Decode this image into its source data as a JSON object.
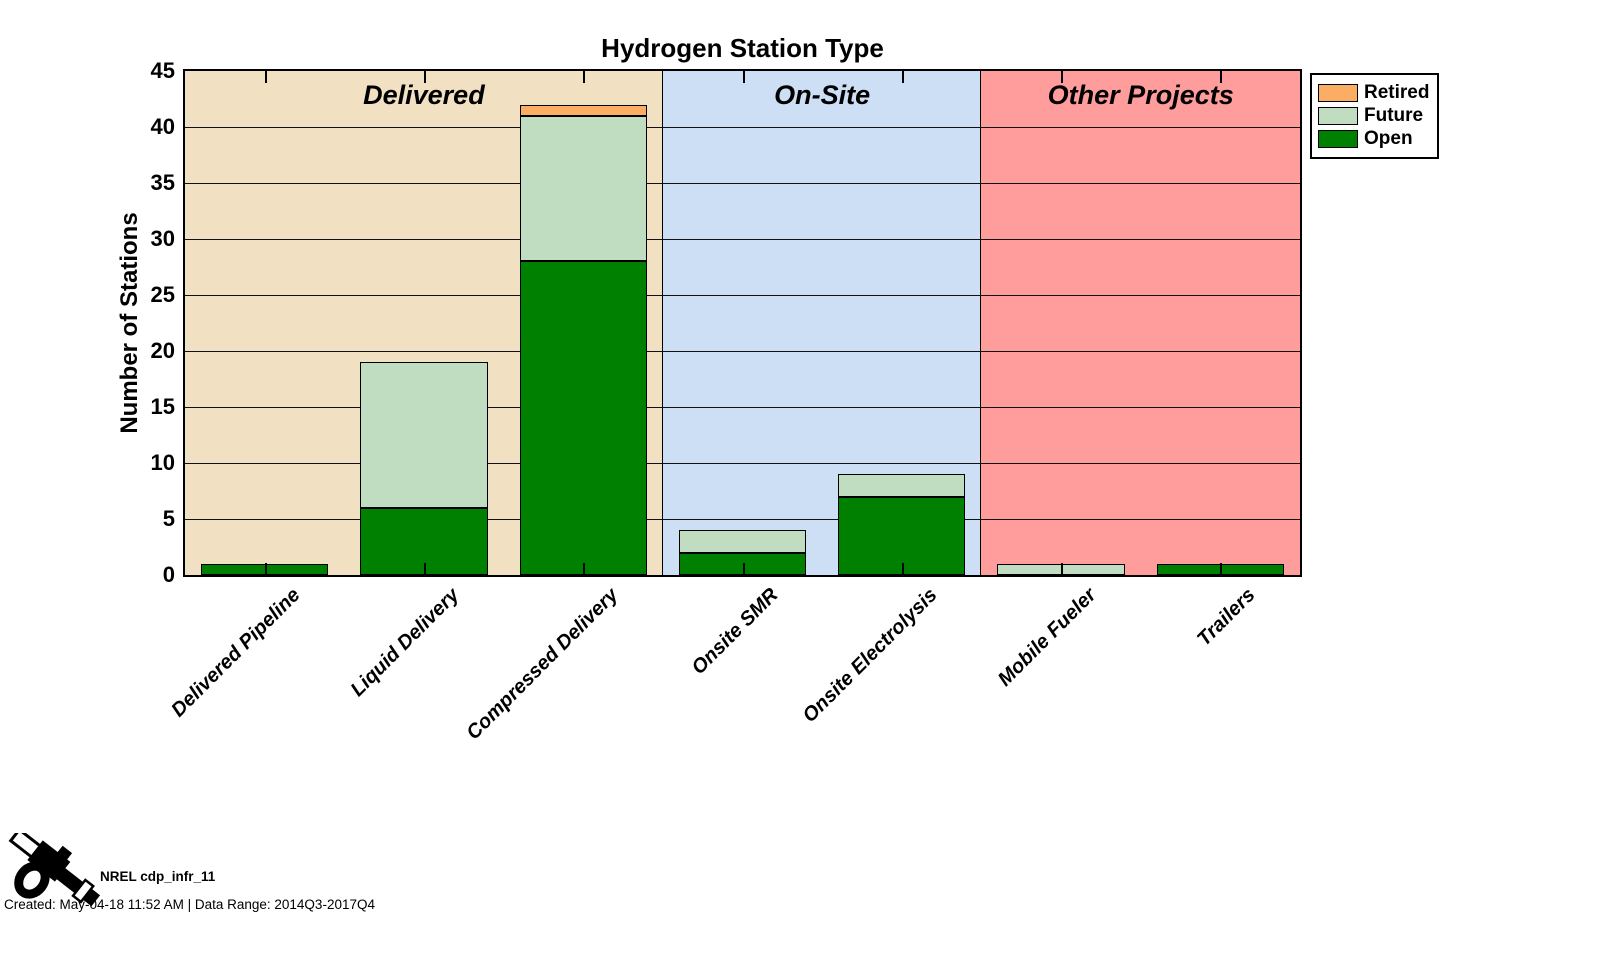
{
  "title": "Hydrogen Station Type",
  "chart_data": {
    "type": "bar",
    "stacked": true,
    "title": "Hydrogen Station Type",
    "ylabel": "Number of Stations",
    "xlabel": "",
    "ylim": [
      0,
      45
    ],
    "ytick_step": 5,
    "grid": true,
    "categories": [
      "Delivered Pipeline",
      "Liquid Delivery",
      "Compressed Delivery",
      "Onsite SMR",
      "Onsite Electrolysis",
      "Mobile Fueler",
      "Trailers"
    ],
    "series": [
      {
        "name": "Open",
        "color": "#008000",
        "values": [
          1,
          6,
          28,
          2,
          7,
          0,
          1
        ]
      },
      {
        "name": "Future",
        "color": "#C1DDC1",
        "values": [
          0,
          13,
          13,
          2,
          2,
          1,
          0
        ]
      },
      {
        "name": "Retired",
        "color": "#FBAD63",
        "values": [
          0,
          0,
          1,
          0,
          0,
          0,
          0
        ]
      }
    ],
    "legend": {
      "position": "outside-top-right",
      "order": [
        "Retired",
        "Future",
        "Open"
      ]
    },
    "regions": [
      {
        "label": "Delivered",
        "color": "#F1E0C1",
        "from_category": 0,
        "to_category": 2
      },
      {
        "label": "On-Site",
        "color": "#CDDFF5",
        "from_category": 3,
        "to_category": 4
      },
      {
        "label": "Other Projects",
        "color": "#FF9C9C",
        "from_category": 5,
        "to_category": 6
      }
    ]
  },
  "footer": {
    "plot_id": "NREL cdp_infr_11",
    "created": "Created: May-04-18 11:52 AM | Data Range: 2014Q3-2017Q4"
  }
}
